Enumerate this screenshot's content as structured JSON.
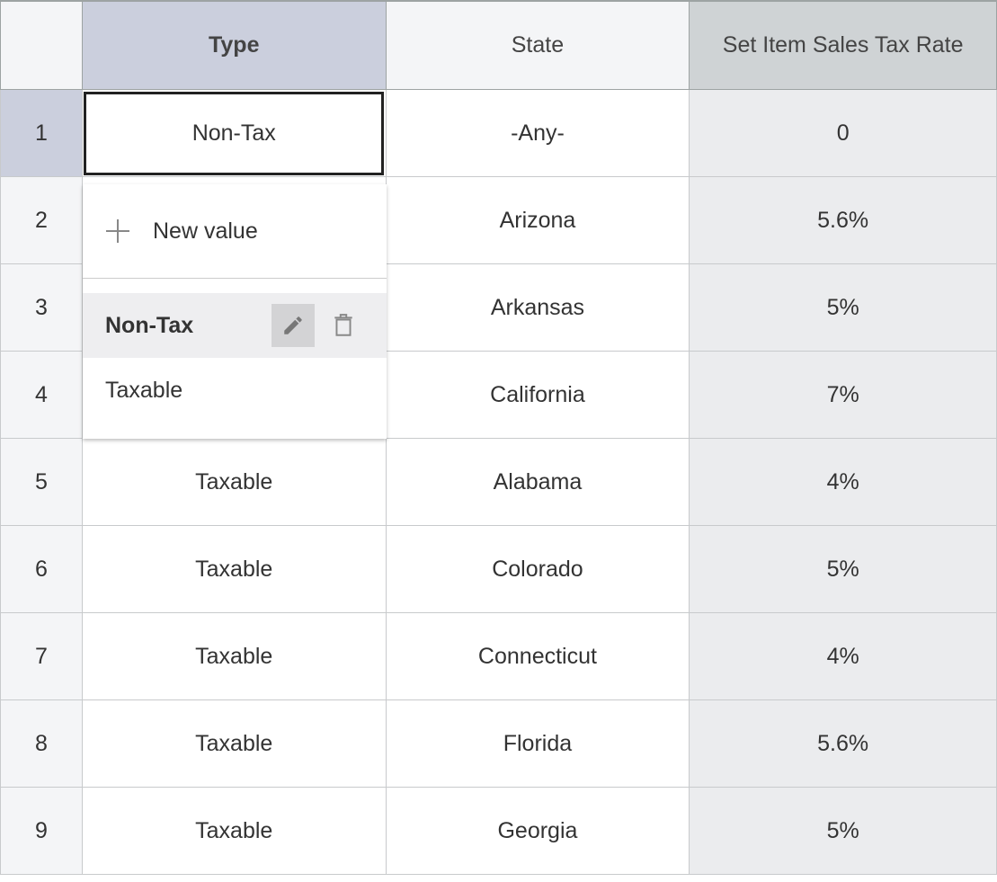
{
  "columns": [
    {
      "key": "row",
      "label": ""
    },
    {
      "key": "type",
      "label": "Type"
    },
    {
      "key": "state",
      "label": "State"
    },
    {
      "key": "rate",
      "label": "Set Item Sales Tax Rate"
    }
  ],
  "rows": [
    {
      "n": "1",
      "type": "Non-Tax",
      "state": "-Any-",
      "rate": "0"
    },
    {
      "n": "2",
      "type": "",
      "state": "Arizona",
      "rate": "5.6%"
    },
    {
      "n": "3",
      "type": "",
      "state": "Arkansas",
      "rate": "5%"
    },
    {
      "n": "4",
      "type": "",
      "state": "California",
      "rate": "7%"
    },
    {
      "n": "5",
      "type": "Taxable",
      "state": "Alabama",
      "rate": "4%"
    },
    {
      "n": "6",
      "type": "Taxable",
      "state": "Colorado",
      "rate": "5%"
    },
    {
      "n": "7",
      "type": "Taxable",
      "state": "Connecticut",
      "rate": "4%"
    },
    {
      "n": "8",
      "type": "Taxable",
      "state": "Florida",
      "rate": "5.6%"
    },
    {
      "n": "9",
      "type": "Taxable",
      "state": "Georgia",
      "rate": "5%"
    }
  ],
  "dropdown": {
    "new_value_label": "New value",
    "options": [
      {
        "label": "Non-Tax",
        "highlighted": true,
        "icons": [
          "pencil-icon",
          "trash-icon"
        ]
      },
      {
        "label": "Taxable",
        "highlighted": false
      }
    ]
  },
  "colors": {
    "selected_header": "#cbcfdd",
    "rate_column": "#ebecee"
  }
}
